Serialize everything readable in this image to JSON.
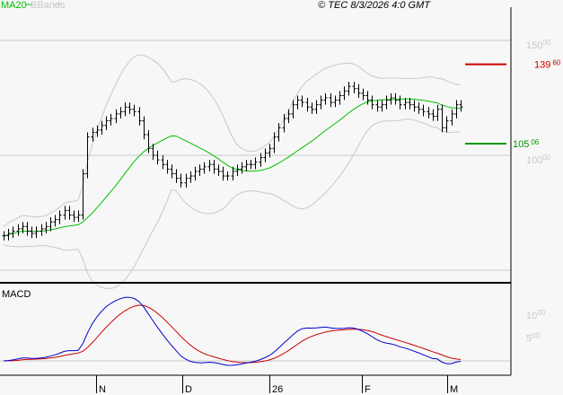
{
  "header": {
    "legend": [
      {
        "label": "MA20",
        "color": "#00c000"
      },
      {
        "label": "BBands",
        "color": "#c8c8c8"
      }
    ],
    "copyright": "© TEC 8/3/2026 4:0 GMT"
  },
  "chart_data": [
    {
      "type": "bar",
      "subtype": "ohlc-price",
      "ylim": [
        45,
        160
      ],
      "y_ticks": [
        {
          "int": "150",
          "dec": "00"
        },
        {
          "int": "100",
          "dec": "00"
        }
      ],
      "grid": true,
      "overlays": [
        "MA20",
        "BBands"
      ],
      "x_ticks": [
        "N",
        "D",
        "26",
        "F",
        "M"
      ],
      "close": [
        65,
        66,
        67,
        68,
        69,
        67,
        66,
        67,
        68,
        69,
        71,
        72,
        74,
        76,
        74,
        73,
        74,
        92,
        108,
        110,
        111,
        113,
        115,
        116,
        118,
        119,
        121,
        120,
        119,
        115,
        109,
        103,
        100,
        98,
        96,
        94,
        92,
        90,
        88,
        90,
        91,
        93,
        94,
        95,
        96,
        94,
        93,
        91,
        91,
        93,
        94,
        95,
        96,
        96,
        97,
        99,
        101,
        103,
        108,
        112,
        116,
        118,
        122,
        124,
        123,
        121,
        120,
        122,
        124,
        125,
        123,
        124,
        126,
        128,
        130,
        129,
        127,
        126,
        124,
        122,
        121,
        122,
        124,
        125,
        124,
        122,
        123,
        122,
        121,
        120,
        119,
        118,
        117,
        120,
        112,
        115,
        118,
        122,
        121
      ],
      "levels": [
        {
          "value": 139.6,
          "int": "139",
          "dec": "60",
          "color": "#cc0000"
        },
        {
          "value": 105.06,
          "int": "105",
          "dec": "06",
          "color": "#009900"
        }
      ],
      "colors": {
        "bars": "#000000",
        "ma": "#00c000",
        "bands": "#c8c8c8"
      }
    },
    {
      "type": "line",
      "title": "MACD",
      "ylim": [
        -3,
        17
      ],
      "y_ticks": [
        {
          "int": "10",
          "dec": "00"
        },
        {
          "int": "5",
          "dec": "00"
        }
      ],
      "series_colors": {
        "macd": "#0000cc",
        "signal": "#cc0000"
      }
    }
  ]
}
